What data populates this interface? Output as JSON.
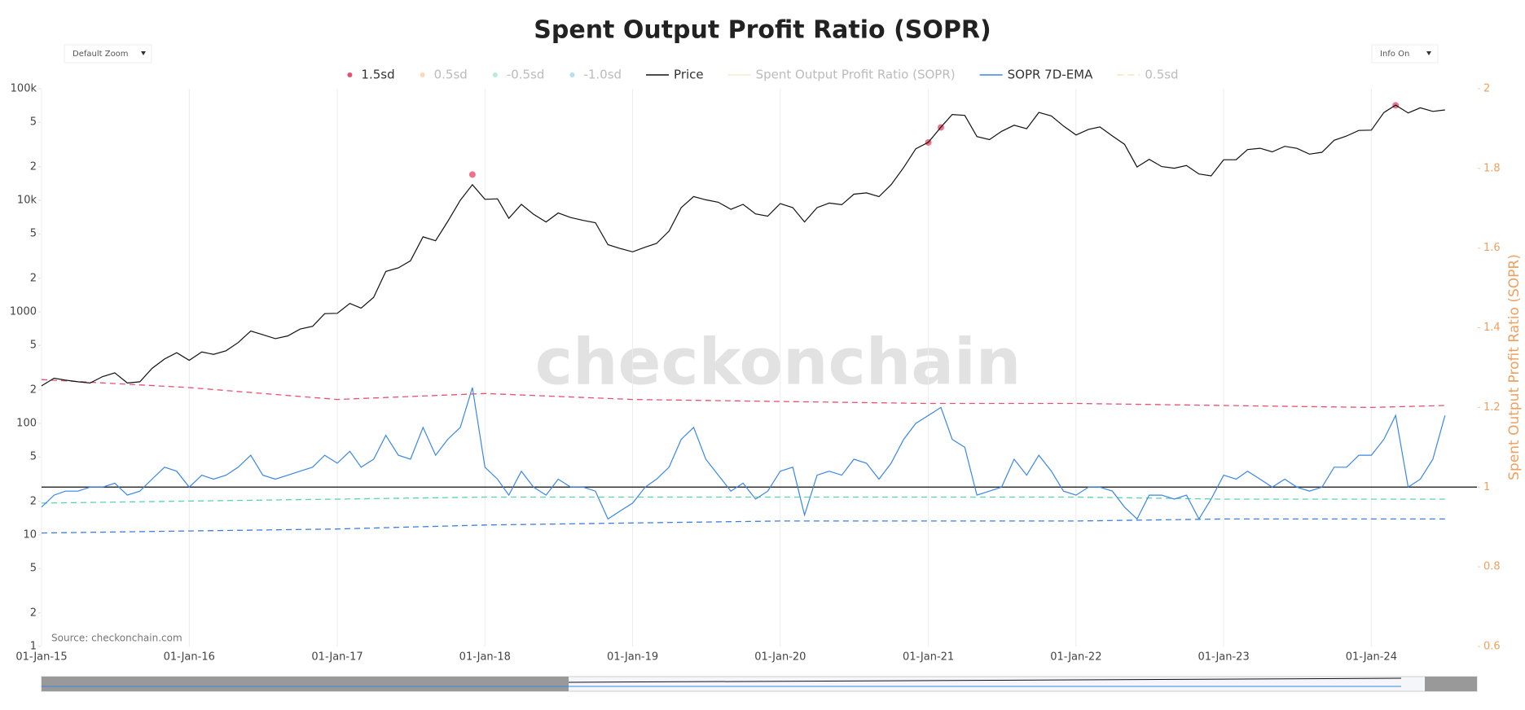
{
  "controls": {
    "zoom_button": "Default Zoom",
    "info_button": "Info On"
  },
  "chart_data": {
    "type": "line",
    "title": "Spent Output Profit Ratio (SOPR)",
    "source": "Source: checkonchain.com",
    "watermark": "checkonchain",
    "x": [
      "2015-01-01",
      "2015-02-01",
      "2015-03-01",
      "2015-04-01",
      "2015-05-01",
      "2015-06-01",
      "2015-07-01",
      "2015-08-01",
      "2015-09-01",
      "2015-10-01",
      "2015-11-01",
      "2015-12-01",
      "2016-01-01",
      "2016-02-01",
      "2016-03-01",
      "2016-04-01",
      "2016-05-01",
      "2016-06-01",
      "2016-07-01",
      "2016-08-01",
      "2016-09-01",
      "2016-10-01",
      "2016-11-01",
      "2016-12-01",
      "2017-01-01",
      "2017-02-01",
      "2017-03-01",
      "2017-04-01",
      "2017-05-01",
      "2017-06-01",
      "2017-07-01",
      "2017-08-01",
      "2017-09-01",
      "2017-10-01",
      "2017-11-01",
      "2017-12-01",
      "2018-01-01",
      "2018-02-01",
      "2018-03-01",
      "2018-04-01",
      "2018-05-01",
      "2018-06-01",
      "2018-07-01",
      "2018-08-01",
      "2018-09-01",
      "2018-10-01",
      "2018-11-01",
      "2018-12-01",
      "2019-01-01",
      "2019-02-01",
      "2019-03-01",
      "2019-04-01",
      "2019-05-01",
      "2019-06-01",
      "2019-07-01",
      "2019-08-01",
      "2019-09-01",
      "2019-10-01",
      "2019-11-01",
      "2019-12-01",
      "2020-01-01",
      "2020-02-01",
      "2020-03-01",
      "2020-04-01",
      "2020-05-01",
      "2020-06-01",
      "2020-07-01",
      "2020-08-01",
      "2020-09-01",
      "2020-10-01",
      "2020-11-01",
      "2020-12-01",
      "2021-01-01",
      "2021-02-01",
      "2021-03-01",
      "2021-04-01",
      "2021-05-01",
      "2021-06-01",
      "2021-07-01",
      "2021-08-01",
      "2021-09-01",
      "2021-10-01",
      "2021-11-01",
      "2021-12-01",
      "2022-01-01",
      "2022-02-01",
      "2022-03-01",
      "2022-04-01",
      "2022-05-01",
      "2022-06-01",
      "2022-07-01",
      "2022-08-01",
      "2022-09-01",
      "2022-10-01",
      "2022-11-01",
      "2022-12-01",
      "2023-01-01",
      "2023-02-01",
      "2023-03-01",
      "2023-04-01",
      "2023-05-01",
      "2023-06-01",
      "2023-07-01",
      "2023-08-01",
      "2023-09-01",
      "2023-10-01",
      "2023-11-01",
      "2023-12-01",
      "2024-01-01",
      "2024-02-01",
      "2024-03-01",
      "2024-04-01",
      "2024-05-01",
      "2024-06-01",
      "2024-07-01"
    ],
    "xlim": [
      "2015-01-01",
      "2024-09-18"
    ],
    "xticks": [
      {
        "value": "2015-01-01",
        "label": "01-Jan-15"
      },
      {
        "value": "2016-01-01",
        "label": "01-Jan-16"
      },
      {
        "value": "2017-01-01",
        "label": "01-Jan-17"
      },
      {
        "value": "2018-01-01",
        "label": "01-Jan-18"
      },
      {
        "value": "2019-01-01",
        "label": "01-Jan-19"
      },
      {
        "value": "2020-01-01",
        "label": "01-Jan-20"
      },
      {
        "value": "2021-01-01",
        "label": "01-Jan-21"
      },
      {
        "value": "2022-01-01",
        "label": "01-Jan-22"
      },
      {
        "value": "2023-01-01",
        "label": "01-Jan-23"
      },
      {
        "value": "2024-01-01",
        "label": "01-Jan-24"
      }
    ],
    "ylim": [
      1,
      100000
    ],
    "yscale": "log",
    "yticks": [
      {
        "value": 100000,
        "label": "100k"
      },
      {
        "value": 50000,
        "label": "5"
      },
      {
        "value": 20000,
        "label": "2"
      },
      {
        "value": 10000,
        "label": "10k"
      },
      {
        "value": 5000,
        "label": "5"
      },
      {
        "value": 2000,
        "label": "2"
      },
      1000,
      {
        "value": 500,
        "label": "5"
      },
      {
        "value": 200,
        "label": "2"
      },
      100,
      {
        "value": 50,
        "label": "5"
      },
      {
        "value": 20,
        "label": "2"
      },
      10,
      5,
      2,
      1
    ],
    "y2lim": [
      0.6,
      2
    ],
    "y2ticks": [
      0.6,
      0.8,
      1,
      1.2,
      1.4,
      1.6,
      1.8,
      2
    ],
    "y2label": "Spent Output Profit Ratio (SOPR)",
    "y2_reference": 1,
    "grid": true,
    "series": [
      {
        "name": "1.5sd",
        "color": "#e8506e",
        "symbol": "dot",
        "x": [
          "2017-12-01",
          "2021-01-01",
          "2021-02-01",
          "2024-03-01"
        ],
        "values": [
          17000,
          33000,
          45000,
          71000
        ]
      },
      {
        "name": "0.5sd",
        "color": "#f7c08a",
        "symbol": "dot",
        "visible": false
      },
      {
        "name": "-0.5sd",
        "color": "#7de0c0",
        "symbol": "dot",
        "visible": false
      },
      {
        "name": "-1.0sd",
        "color": "#7ec8f0",
        "symbol": "dot",
        "visible": false
      },
      {
        "name": "Price",
        "color": "#111111",
        "symbol": "line",
        "values": [
          217,
          254,
          244,
          236,
          230,
          263,
          284,
          230,
          236,
          311,
          378,
          430,
          368,
          437,
          416,
          448,
          531,
          673,
          624,
          575,
          609,
          700,
          742,
          963,
          970,
          1190,
          1080,
          1350,
          2300,
          2480,
          2870,
          4700,
          4340,
          6460,
          10000,
          13800,
          10200,
          10300,
          6900,
          9200,
          7500,
          6400,
          7700,
          7000,
          6600,
          6300,
          4000,
          3700,
          3450,
          3800,
          4100,
          5300,
          8600,
          10800,
          10100,
          9600,
          8300,
          9200,
          7550,
          7200,
          9350,
          8600,
          6400,
          8600,
          9450,
          9140,
          11350,
          11650,
          10780,
          13800,
          19700,
          29000,
          33100,
          45200,
          58800,
          57700,
          37300,
          35000,
          41500,
          47100,
          43800,
          61300,
          57000,
          46300,
          38500,
          43200,
          45500,
          37700,
          31800,
          19900,
          23300,
          20050,
          19400,
          20500,
          17200,
          16550,
          23100,
          23150,
          28500,
          29250,
          27200,
          30500,
          29200,
          25950,
          26960,
          34500,
          37700,
          42300,
          42600,
          61200,
          71300,
          60700,
          67500,
          62700,
          64600
        ]
      },
      {
        "name": "Spent Output Profit Ratio (SOPR)",
        "color": "#f9d7b0",
        "symbol": "line",
        "visible": false,
        "axis": "y2"
      },
      {
        "name": "SOPR 7D-EMA",
        "color": "#3a86e8",
        "symbol": "line",
        "axis": "y2",
        "values": [
          0.95,
          0.98,
          0.99,
          0.99,
          1.0,
          1.0,
          1.01,
          0.98,
          0.99,
          1.02,
          1.05,
          1.04,
          1.0,
          1.03,
          1.02,
          1.03,
          1.05,
          1.08,
          1.03,
          1.02,
          1.03,
          1.04,
          1.05,
          1.08,
          1.06,
          1.09,
          1.05,
          1.07,
          1.13,
          1.08,
          1.07,
          1.15,
          1.08,
          1.12,
          1.15,
          1.25,
          1.05,
          1.02,
          0.98,
          1.04,
          1.0,
          0.98,
          1.02,
          1.0,
          1.0,
          0.99,
          0.92,
          0.94,
          0.96,
          1.0,
          1.02,
          1.05,
          1.12,
          1.15,
          1.07,
          1.03,
          0.99,
          1.01,
          0.97,
          0.99,
          1.04,
          1.05,
          0.93,
          1.03,
          1.04,
          1.03,
          1.07,
          1.06,
          1.02,
          1.06,
          1.12,
          1.16,
          1.18,
          1.2,
          1.12,
          1.1,
          0.98,
          0.99,
          1.0,
          1.07,
          1.03,
          1.08,
          1.04,
          0.99,
          0.98,
          1.0,
          1.0,
          0.99,
          0.95,
          0.92,
          0.98,
          0.98,
          0.97,
          0.98,
          0.92,
          0.97,
          1.03,
          1.02,
          1.04,
          1.02,
          1.0,
          1.02,
          1.0,
          0.99,
          1.0,
          1.05,
          1.05,
          1.08,
          1.08,
          1.12,
          1.18,
          1.0,
          1.02,
          1.07,
          1.18
        ]
      },
      {
        "name": "0.5sd",
        "color": "#f5d090",
        "symbol": "dash",
        "visible": false,
        "axis": "y2"
      }
    ],
    "bands": {
      "axis": "y2",
      "x": [
        "2015-01-01",
        "2016-01-01",
        "2017-01-01",
        "2018-01-01",
        "2019-01-01",
        "2020-01-01",
        "2021-01-01",
        "2022-01-01",
        "2023-01-01",
        "2024-01-01",
        "2024-07-01"
      ],
      "series": [
        {
          "color": "#e8506e",
          "values": [
            1.27,
            1.25,
            1.22,
            1.235,
            1.22,
            1.215,
            1.21,
            1.21,
            1.205,
            1.2,
            1.205
          ]
        },
        {
          "color": "#58d6a8",
          "values": [
            0.96,
            0.965,
            0.97,
            0.975,
            0.975,
            0.975,
            0.975,
            0.975,
            0.97,
            0.97,
            0.97
          ]
        },
        {
          "color": "#3a7ee0",
          "values": [
            0.885,
            0.89,
            0.895,
            0.905,
            0.91,
            0.915,
            0.915,
            0.915,
            0.92,
            0.92,
            0.92
          ]
        }
      ]
    }
  }
}
